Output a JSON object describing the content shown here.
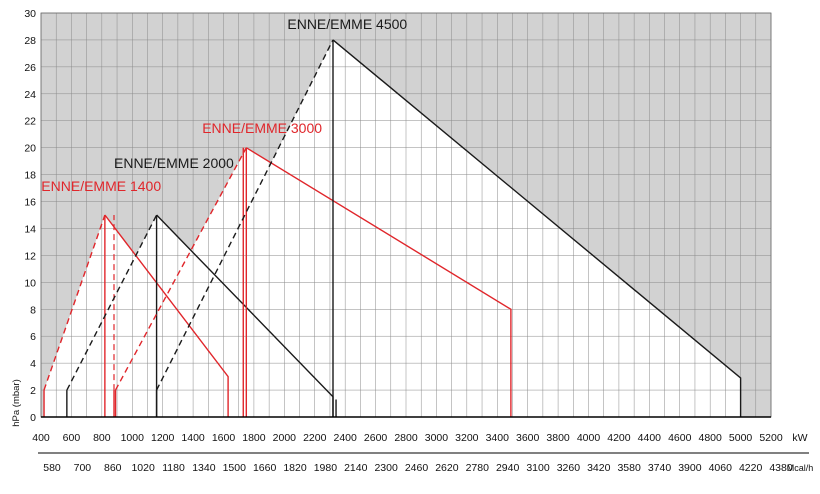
{
  "chart_data": {
    "type": "line",
    "title": "",
    "ylabel": "hPa (mbar)",
    "xlabel": "kW",
    "x2label": "Mcal/h",
    "xlim": [
      400,
      5200
    ],
    "ylim": [
      0,
      30
    ],
    "x_ticks": [
      400,
      600,
      800,
      1000,
      1200,
      1400,
      1600,
      1800,
      2000,
      2200,
      2400,
      2600,
      2800,
      3000,
      3200,
      3400,
      3600,
      3800,
      4000,
      4200,
      4400,
      4600,
      4800,
      5000,
      5200
    ],
    "y_ticks": [
      0,
      2,
      4,
      6,
      8,
      10,
      12,
      14,
      16,
      18,
      20,
      22,
      24,
      26,
      28,
      30
    ],
    "x2_ticks": [
      "580",
      "700",
      "860",
      "1020",
      "1180",
      "1340",
      "1500",
      "1660",
      "1820",
      "1980",
      "2140",
      "2300",
      "2460",
      "2620",
      "2780",
      "2940",
      "3100",
      "3260",
      "3420",
      "3580",
      "3740",
      "3900",
      "4060",
      "4220",
      "4380"
    ],
    "grid": true,
    "shaded_region": "outside the working field envelope",
    "series": [
      {
        "name": "ENNE/EMME 1400",
        "color": "#e0262b",
        "label_at": [
          402,
          16.8
        ],
        "envelope": [
          [
            420,
            0
          ],
          [
            420,
            2
          ],
          [
            820,
            15
          ],
          [
            1630,
            3
          ],
          [
            1630,
            0
          ]
        ],
        "dashed": [
          [
            420,
            2
          ],
          [
            820,
            15
          ]
        ],
        "solid": [
          [
            820,
            15
          ],
          [
            1630,
            3
          ],
          [
            1630,
            0
          ]
        ],
        "verticals": [
          [
            420,
            0,
            2
          ],
          [
            820,
            0,
            15
          ],
          [
            880,
            0,
            2
          ]
        ],
        "verticals_dashed": [
          [
            880,
            2,
            15
          ]
        ]
      },
      {
        "name": "ENNE/EMME 2000",
        "color": "#1a1a1a",
        "label_at": [
          880,
          18.5
        ],
        "envelope": [
          [
            570,
            0
          ],
          [
            570,
            2
          ],
          [
            1160,
            15
          ],
          [
            2320,
            1.5
          ],
          [
            2320,
            0
          ]
        ],
        "dashed": [
          [
            570,
            2
          ],
          [
            1160,
            15
          ]
        ],
        "solid": [
          [
            1160,
            15
          ],
          [
            2320,
            1.5
          ],
          [
            2320,
            0
          ]
        ],
        "verticals": [
          [
            570,
            0,
            2
          ],
          [
            1160,
            0,
            15
          ]
        ],
        "verticals_dashed": []
      },
      {
        "name": "ENNE/EMME 3000",
        "color": "#e0262b",
        "label_at": [
          1460,
          21.1
        ],
        "envelope": [
          [
            890,
            0
          ],
          [
            890,
            2
          ],
          [
            1750,
            20
          ],
          [
            3490,
            8
          ],
          [
            3490,
            0
          ]
        ],
        "dashed": [
          [
            890,
            2
          ],
          [
            1750,
            20
          ]
        ],
        "solid": [
          [
            1750,
            20
          ],
          [
            3490,
            8
          ],
          [
            3490,
            0
          ]
        ],
        "verticals": [
          [
            890,
            0,
            2
          ],
          [
            1730,
            0,
            20
          ],
          [
            1750,
            0,
            20
          ]
        ],
        "verticals_dashed": []
      },
      {
        "name": "ENNE/EMME 4500",
        "color": "#1a1a1a",
        "label_at": [
          2020,
          28.8
        ],
        "envelope": [
          [
            1160,
            0
          ],
          [
            1160,
            2
          ],
          [
            2320,
            28
          ],
          [
            5000,
            2.9
          ],
          [
            5000,
            0
          ]
        ],
        "dashed": [
          [
            1160,
            2
          ],
          [
            2320,
            28
          ]
        ],
        "solid": [
          [
            2320,
            28
          ],
          [
            5000,
            2.9
          ],
          [
            5000,
            0
          ]
        ],
        "verticals": [
          [
            1160,
            0,
            2
          ],
          [
            2320,
            0,
            28
          ],
          [
            2340,
            0,
            1.3
          ]
        ],
        "verticals_dashed": []
      }
    ]
  }
}
